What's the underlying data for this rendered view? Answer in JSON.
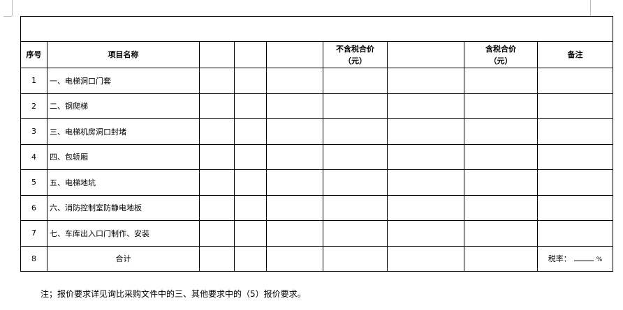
{
  "table": {
    "headers": [
      "序号",
      "项目名称",
      "",
      "",
      "",
      "不含税合价\n（元）",
      "",
      "含税合价\n（元）",
      "备注"
    ],
    "header_excl_tax": [
      "不含税合价",
      "（元）"
    ],
    "header_incl_tax": [
      "含税合价",
      "（元）"
    ],
    "rows": [
      {
        "no": "1",
        "name": "一、电梯洞口门套"
      },
      {
        "no": "2",
        "name": "二、钢爬梯"
      },
      {
        "no": "3",
        "name": "三、电梯机房洞口封堵"
      },
      {
        "no": "4",
        "name": "四、包轿厢"
      },
      {
        "no": "5",
        "name": "五、电梯地坑"
      },
      {
        "no": "6",
        "name": "六、消防控制室防静电地板"
      },
      {
        "no": "7",
        "name": "七、车库出入口门制作、安装"
      }
    ],
    "total": {
      "no": "8",
      "label": "合计",
      "tax_rate_label": "税率：",
      "tax_rate_unit": "%"
    }
  },
  "note": "注；报价要求详见询比采购文件中的三、其他要求中的（5）报价要求。"
}
